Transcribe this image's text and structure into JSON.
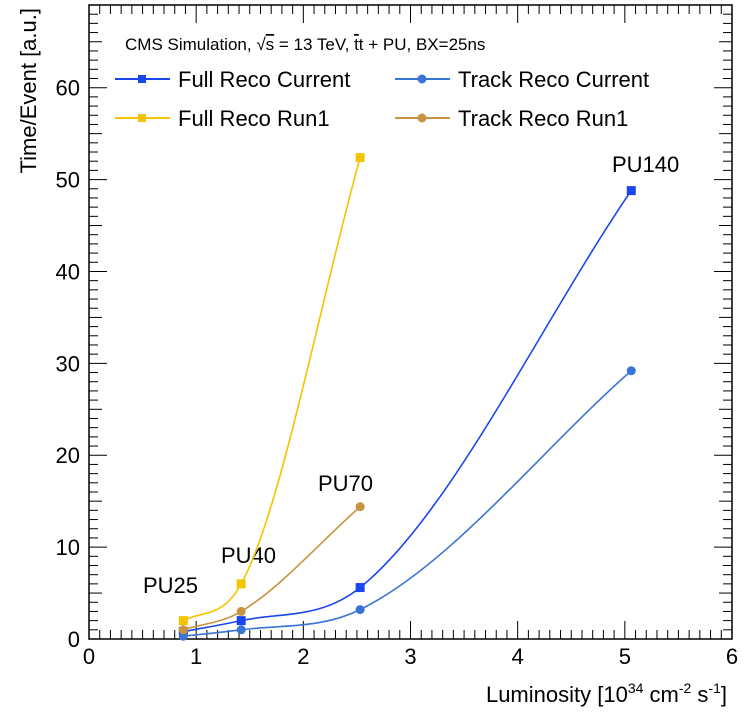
{
  "chart_data": {
    "type": "line",
    "header": {
      "prefix": "CMS Simulation, ",
      "sqrt_symbol": "√",
      "sqrt_s": "s",
      "energy": " = 13 TeV, ",
      "tbar": "t",
      "t": "t",
      "suffix": " + PU, BX=25ns"
    },
    "xlabel": {
      "pre": "Luminosity [10",
      "exp1": "34",
      "mid": " cm",
      "exp2": "-2",
      "mid2": " s",
      "exp3": "-1",
      "post": "]"
    },
    "ylabel": "Time/Event [a.u.]",
    "xlim": [
      0,
      6
    ],
    "ylim": [
      0,
      69
    ],
    "x_ticks": [
      "0",
      "1",
      "2",
      "3",
      "4",
      "5",
      "6"
    ],
    "y_ticks": [
      "0",
      "10",
      "20",
      "30",
      "40",
      "50",
      "60"
    ],
    "grid": false,
    "legend_position": "top",
    "series": [
      {
        "name": "Full Reco Current",
        "color": "#1a46ef",
        "marker": "square",
        "x": [
          0.88,
          1.42,
          2.53,
          5.06
        ],
        "y": [
          0.8,
          2.0,
          5.6,
          48.8
        ]
      },
      {
        "name": "Track Reco Current",
        "color": "#3a74d6",
        "marker": "circle",
        "x": [
          0.88,
          1.42,
          2.53,
          5.06
        ],
        "y": [
          0.3,
          1.0,
          3.2,
          29.2
        ]
      },
      {
        "name": "Full Reco Run1",
        "color": "#f5c400",
        "marker": "square",
        "x": [
          0.88,
          1.42,
          2.53
        ],
        "y": [
          2.0,
          6.0,
          52.4
        ]
      },
      {
        "name": "Track Reco Run1",
        "color": "#c89440",
        "marker": "circle",
        "x": [
          0.88,
          1.42,
          2.53
        ],
        "y": [
          1.0,
          3.0,
          14.4
        ]
      }
    ],
    "annotations": [
      "PU25",
      "PU40",
      "PU70",
      "PU140"
    ]
  }
}
